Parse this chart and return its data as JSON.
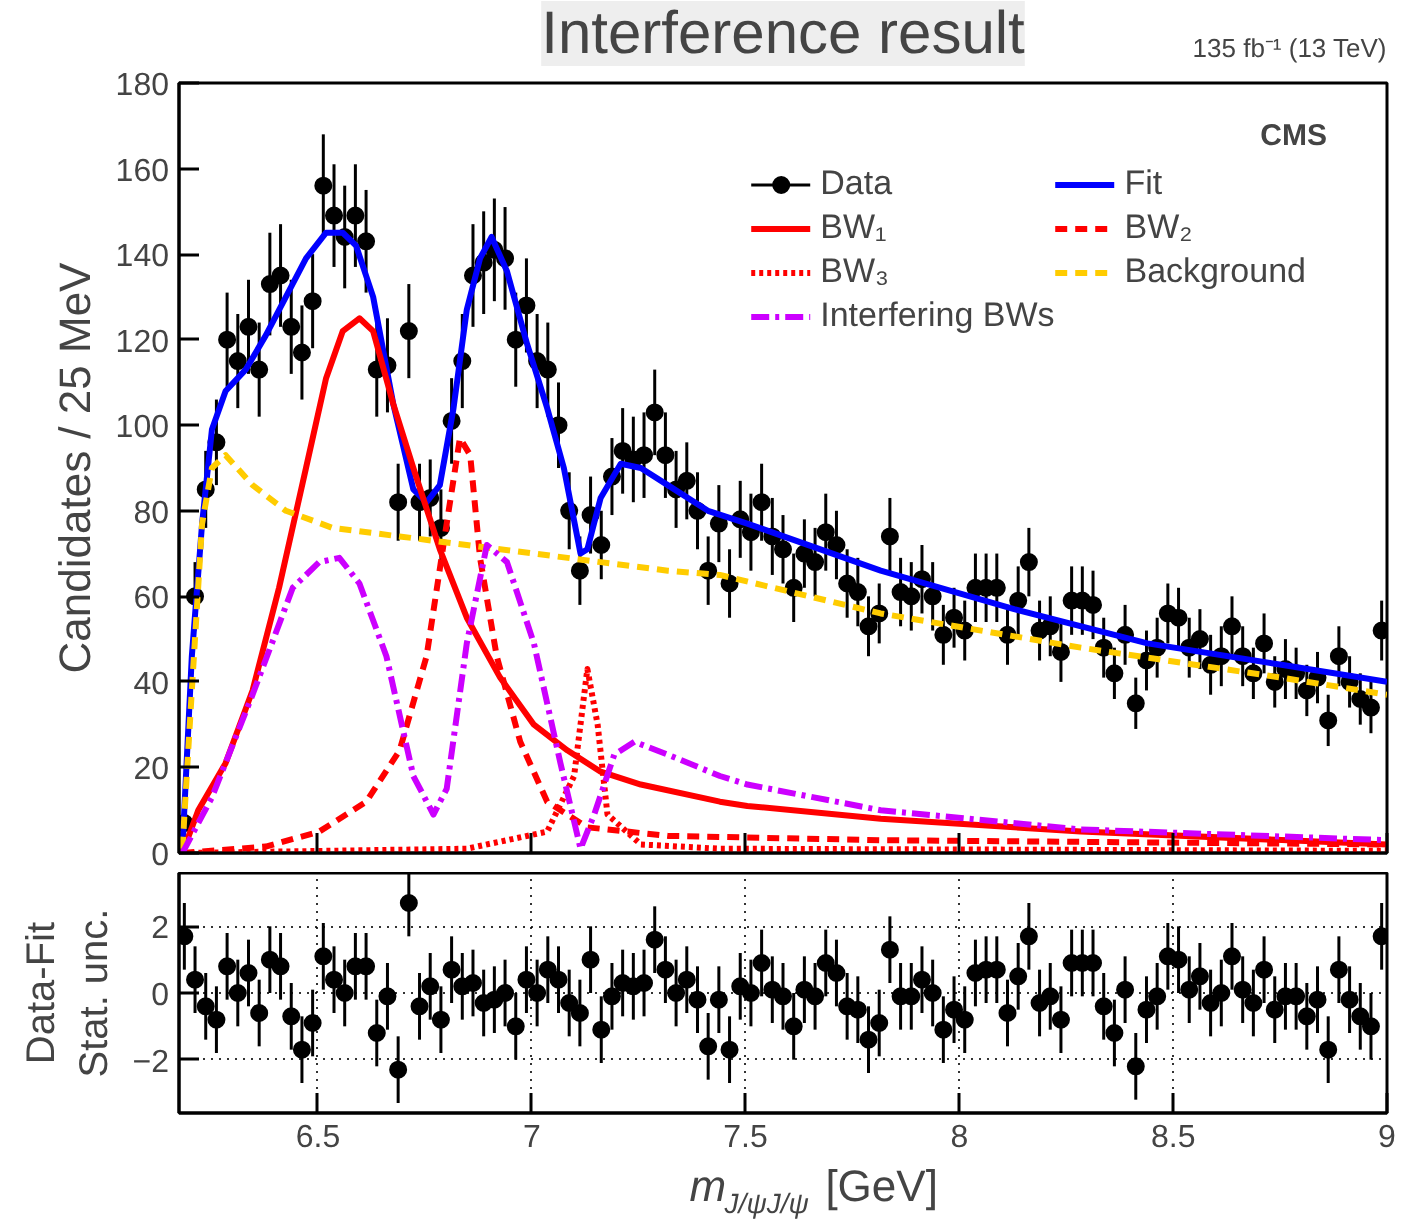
{
  "chart_data": [
    {
      "type": "line",
      "title": "Interference result",
      "ylabel": "Candidates / 25 MeV",
      "annotations": [
        "135 fb⁻¹ (13 TeV)",
        "CMS"
      ],
      "xlim": [
        6.175,
        9.0
      ],
      "ylim": [
        0,
        180
      ],
      "xticks": [
        6.5,
        7,
        7.5,
        8,
        8.5,
        9
      ],
      "yticks": [
        0,
        20,
        40,
        60,
        80,
        100,
        120,
        140,
        160,
        180
      ],
      "tick_labels": "y",
      "legend": "top right",
      "series": [
        {
          "name": "Data",
          "type": "scatter",
          "marker": "circle",
          "color": "#000000",
          "x": [
            6.1875,
            6.2125,
            6.2375,
            6.2625,
            6.2875,
            6.3125,
            6.3375,
            6.3625,
            6.3875,
            6.4125,
            6.4375,
            6.4625,
            6.4875,
            6.5125,
            6.5375,
            6.5625,
            6.5875,
            6.6125,
            6.6375,
            6.6625,
            6.6875,
            6.7125,
            6.7375,
            6.7625,
            6.7875,
            6.8125,
            6.8375,
            6.8625,
            6.8875,
            6.9125,
            6.9375,
            6.9625,
            6.9875,
            7.0125,
            7.0375,
            7.0625,
            7.0875,
            7.1125,
            7.1375,
            7.1625,
            7.1875,
            7.2125,
            7.2375,
            7.2625,
            7.2875,
            7.3125,
            7.3375,
            7.3625,
            7.3875,
            7.4125,
            7.4375,
            7.4625,
            7.4875,
            7.5125,
            7.5375,
            7.5625,
            7.5875,
            7.6125,
            7.6375,
            7.6625,
            7.6875,
            7.7125,
            7.7375,
            7.7625,
            7.7875,
            7.8125,
            7.8375,
            7.8625,
            7.8875,
            7.9125,
            7.9375,
            7.9625,
            7.9875,
            8.0125,
            8.0375,
            8.0625,
            8.0875,
            8.1125,
            8.1375,
            8.1625,
            8.1875,
            8.2125,
            8.2375,
            8.2625,
            8.2875,
            8.3125,
            8.3375,
            8.3625,
            8.3875,
            8.4125,
            8.4375,
            8.4625,
            8.4875,
            8.5125,
            8.5375,
            8.5625,
            8.5875,
            8.6125,
            8.6375,
            8.6625,
            8.6875,
            8.7125,
            8.7375,
            8.7625,
            8.7875,
            8.8125,
            8.8375,
            8.8625,
            8.8875,
            8.9125,
            8.9375,
            8.9625,
            8.9875
          ],
          "values": [
            7,
            60,
            85,
            96,
            120,
            115,
            123,
            113,
            133,
            135,
            123,
            117,
            129,
            156,
            149,
            144,
            149,
            143,
            113,
            114,
            82,
            122,
            82,
            83,
            76,
            101,
            115,
            135,
            138,
            141,
            139,
            120,
            128,
            115,
            113,
            100,
            80,
            66,
            79,
            72,
            88,
            94,
            92,
            93,
            103,
            93,
            85,
            87,
            80,
            66,
            77,
            63,
            78,
            75,
            82,
            74,
            71,
            62,
            70,
            68,
            75,
            72,
            63,
            61,
            53,
            56,
            74,
            61,
            60,
            64,
            60,
            51,
            55,
            52,
            62,
            62,
            62,
            51,
            59,
            68,
            52,
            53,
            47,
            59,
            59,
            58,
            48,
            42,
            51,
            35,
            45,
            48,
            56,
            55,
            48,
            50,
            44,
            46,
            53,
            46,
            42,
            49,
            40,
            43,
            42,
            38,
            41,
            31,
            46,
            40,
            36,
            34,
            52
          ],
          "errors": [
            3,
            8,
            9,
            10,
            11,
            11,
            11,
            11,
            12,
            12,
            11,
            11,
            11,
            12,
            12,
            12,
            12,
            12,
            11,
            11,
            9,
            11,
            9,
            9,
            9,
            10,
            11,
            12,
            12,
            12,
            12,
            11,
            11,
            11,
            11,
            10,
            9,
            8,
            9,
            8,
            9,
            10,
            10,
            10,
            10,
            10,
            9,
            9,
            9,
            8,
            9,
            8,
            9,
            9,
            9,
            9,
            8,
            8,
            8,
            8,
            9,
            8,
            8,
            8,
            7,
            7,
            9,
            8,
            8,
            8,
            8,
            7,
            7,
            7,
            8,
            8,
            8,
            7,
            8,
            8,
            7,
            7,
            7,
            8,
            8,
            8,
            7,
            6,
            7,
            6,
            7,
            7,
            7,
            7,
            7,
            7,
            7,
            7,
            7,
            7,
            6,
            7,
            6,
            7,
            6,
            6,
            6,
            6,
            7,
            6,
            6,
            6,
            7
          ]
        },
        {
          "name": "Fit",
          "type": "line",
          "line_style": "solid",
          "color": "#0000ff",
          "x": [
            6.183,
            6.205,
            6.229,
            6.252,
            6.284,
            6.331,
            6.378,
            6.425,
            6.472,
            6.519,
            6.558,
            6.589,
            6.629,
            6.676,
            6.723,
            6.754,
            6.785,
            6.817,
            6.848,
            6.879,
            6.906,
            6.942,
            6.989,
            7.036,
            7.075,
            7.114,
            7.13,
            7.161,
            7.208,
            7.255,
            7.318,
            7.412,
            7.504,
            7.816,
            8.128,
            8.44,
            8.753,
            9.0
          ],
          "values": [
            1,
            46,
            77,
            99,
            108,
            113,
            121,
            130,
            139,
            145,
            145,
            142,
            130,
            105,
            85,
            82,
            86,
            104,
            127,
            139,
            144,
            136,
            119,
            104,
            90,
            70,
            71,
            83,
            91,
            90,
            86,
            80,
            77,
            66,
            57,
            49,
            44,
            40
          ]
        },
        {
          "name": "BW₁",
          "type": "line",
          "line_style": "solid",
          "color": "#ff0000",
          "x": [
            6.183,
            6.22,
            6.284,
            6.347,
            6.409,
            6.472,
            6.519,
            6.558,
            6.597,
            6.629,
            6.676,
            6.723,
            6.785,
            6.848,
            6.926,
            7.005,
            7.083,
            7.161,
            7.255,
            7.44,
            7.504,
            7.816,
            8.284,
            9.0
          ],
          "values": [
            0,
            10,
            21,
            38,
            62,
            90,
            111,
            122,
            125,
            122,
            105,
            90,
            71,
            55,
            41,
            30,
            24,
            19,
            16,
            12,
            11,
            8,
            5,
            2
          ]
        },
        {
          "name": "BW₂",
          "type": "line",
          "line_style": "dashed",
          "color": "#ff0000",
          "x": [
            6.183,
            6.378,
            6.503,
            6.613,
            6.691,
            6.754,
            6.801,
            6.832,
            6.856,
            6.879,
            6.918,
            6.973,
            7.036,
            7.13,
            7.318,
            7.816,
            9.0
          ],
          "values": [
            0,
            1.5,
            5,
            12,
            24,
            46,
            77,
            97,
            93,
            69,
            46,
            26,
            12,
            6,
            4,
            3,
            2
          ]
        },
        {
          "name": "BW₃",
          "type": "line",
          "line_style": "dotted",
          "color": "#ff0000",
          "x": [
            6.183,
            6.848,
            7.036,
            7.099,
            7.13,
            7.154,
            7.177,
            7.255,
            7.44,
            9.0
          ],
          "values": [
            0,
            1,
            5,
            18,
            43,
            30,
            9,
            2,
            1,
            0.5
          ]
        },
        {
          "name": "Background",
          "type": "line",
          "line_style": "dashed",
          "color": "#ffcc00",
          "x": [
            6.183,
            6.205,
            6.229,
            6.252,
            6.284,
            6.347,
            6.425,
            6.534,
            6.691,
            6.848,
            7.005,
            7.161,
            7.318,
            7.44,
            7.816,
            8.284,
            8.753,
            9.0
          ],
          "values": [
            1,
            38,
            77,
            90,
            93,
            86,
            80,
            76,
            74,
            72,
            70,
            68,
            66,
            65,
            56,
            48,
            41,
            37
          ]
        },
        {
          "name": "Interfering BWs",
          "type": "line",
          "line_style": "dashdot",
          "color": "#cc00ff",
          "x": [
            6.183,
            6.252,
            6.347,
            6.441,
            6.503,
            6.55,
            6.597,
            6.66,
            6.723,
            6.77,
            6.801,
            6.848,
            6.895,
            6.942,
            7.005,
            7.067,
            7.114,
            7.146,
            7.193,
            7.24,
            7.318,
            7.44,
            7.504,
            7.816,
            8.284,
            9.0
          ],
          "values": [
            0,
            13,
            37,
            62,
            68,
            69,
            63,
            46,
            18,
            9,
            15,
            49,
            72,
            68,
            49,
            21,
            1,
            9,
            23,
            26,
            23,
            18,
            16,
            10,
            5.5,
            3
          ]
        }
      ]
    },
    {
      "type": "scatter",
      "ylabel": "Data-Fit\nStat. unc.",
      "xlabel": "m$_{J/ψJ/ψ}$ [GeV]",
      "xlim": [
        6.175,
        9.0
      ],
      "ylim": [
        -3.6,
        3.6
      ],
      "xticks": [
        6.5,
        7,
        7.5,
        8,
        8.5,
        9
      ],
      "yticks": [
        -2,
        0,
        2
      ],
      "grid": true,
      "marker": "circle",
      "series": [
        {
          "color": "#000000",
          "x": [
            6.1875,
            6.2125,
            6.2375,
            6.2625,
            6.2875,
            6.3125,
            6.3375,
            6.3625,
            6.3875,
            6.4125,
            6.4375,
            6.4625,
            6.4875,
            6.5125,
            6.5375,
            6.5625,
            6.5875,
            6.6125,
            6.6375,
            6.6625,
            6.6875,
            6.7125,
            6.7375,
            6.7625,
            6.7875,
            6.8125,
            6.8375,
            6.8625,
            6.8875,
            6.9125,
            6.9375,
            6.9625,
            6.9875,
            7.0125,
            7.0375,
            7.0625,
            7.0875,
            7.1125,
            7.1375,
            7.1625,
            7.1875,
            7.2125,
            7.2375,
            7.2625,
            7.2875,
            7.3125,
            7.3375,
            7.3625,
            7.3875,
            7.4125,
            7.4375,
            7.4625,
            7.4875,
            7.5125,
            7.5375,
            7.5625,
            7.5875,
            7.6125,
            7.6375,
            7.6625,
            7.6875,
            7.7125,
            7.7375,
            7.7625,
            7.7875,
            7.8125,
            7.8375,
            7.8625,
            7.8875,
            7.9125,
            7.9375,
            7.9625,
            7.9875,
            8.0125,
            8.0375,
            8.0625,
            8.0875,
            8.1125,
            8.1375,
            8.1625,
            8.1875,
            8.2125,
            8.2375,
            8.2625,
            8.2875,
            8.3125,
            8.3375,
            8.3625,
            8.3875,
            8.4125,
            8.4375,
            8.4625,
            8.4875,
            8.5125,
            8.5375,
            8.5625,
            8.5875,
            8.6125,
            8.6375,
            8.6625,
            8.6875,
            8.7125,
            8.7375,
            8.7625,
            8.7875,
            8.8125,
            8.8375,
            8.8625,
            8.8875,
            8.9125,
            8.9375,
            8.9625,
            8.9875
          ],
          "values": [
            1.7,
            0.4,
            -0.4,
            -0.8,
            0.8,
            0,
            0.6,
            -0.6,
            1.0,
            0.8,
            -0.7,
            -1.7,
            -0.9,
            1.1,
            0.4,
            0,
            0.8,
            0.8,
            -1.2,
            -0.1,
            -2.3,
            2.7,
            -0.4,
            0.2,
            -0.8,
            0.7,
            0.2,
            0.3,
            -0.3,
            -0.2,
            0,
            -1.0,
            0.4,
            0,
            0.7,
            0.4,
            -0.3,
            -0.6,
            1.0,
            -1.1,
            -0.1,
            0.3,
            0.2,
            0.3,
            1.6,
            0.7,
            0,
            0.4,
            -0.2,
            -1.6,
            -0.2,
            -1.7,
            0.2,
            0,
            0.9,
            0.1,
            -0.1,
            -1.0,
            0.1,
            -0.1,
            0.9,
            0.6,
            -0.4,
            -0.5,
            -1.4,
            -0.9,
            1.3,
            -0.1,
            -0.1,
            0.4,
            0,
            -1.1,
            -0.5,
            -0.8,
            0.6,
            0.7,
            0.7,
            -0.6,
            0.5,
            1.7,
            -0.3,
            -0.1,
            -0.8,
            0.9,
            0.9,
            0.9,
            -0.4,
            -1.2,
            0.1,
            -2.2,
            -0.5,
            -0.1,
            1.1,
            1.0,
            0.1,
            0.5,
            -0.3,
            0,
            1.1,
            0.1,
            -0.3,
            0.7,
            -0.5,
            -0.1,
            -0.1,
            -0.7,
            -0.2,
            -1.7,
            0.7,
            -0.2,
            -0.7,
            -1.0,
            1.7
          ],
          "errors": [
            1,
            1,
            1,
            1,
            1,
            1,
            1,
            1,
            1,
            1,
            1,
            1,
            1,
            1,
            1,
            1,
            1,
            1,
            1,
            1,
            1,
            1,
            1,
            1,
            1,
            1,
            1,
            1,
            1,
            1,
            1,
            1,
            1,
            1,
            1,
            1,
            1,
            1,
            1,
            1,
            1,
            1,
            1,
            1,
            1,
            1,
            1,
            1,
            1,
            1,
            1,
            1,
            1,
            1,
            1,
            1,
            1,
            1,
            1,
            1,
            1,
            1,
            1,
            1,
            1,
            1,
            1,
            1,
            1,
            1,
            1,
            1,
            1,
            1,
            1,
            1,
            1,
            1,
            1,
            1,
            1,
            1,
            1,
            1,
            1,
            1,
            1,
            1,
            1,
            1,
            1,
            1,
            1,
            1,
            1,
            1,
            1,
            1,
            1,
            1,
            1,
            1,
            1,
            1,
            1,
            1,
            1,
            1,
            1,
            1,
            1,
            1,
            1
          ]
        }
      ]
    }
  ]
}
